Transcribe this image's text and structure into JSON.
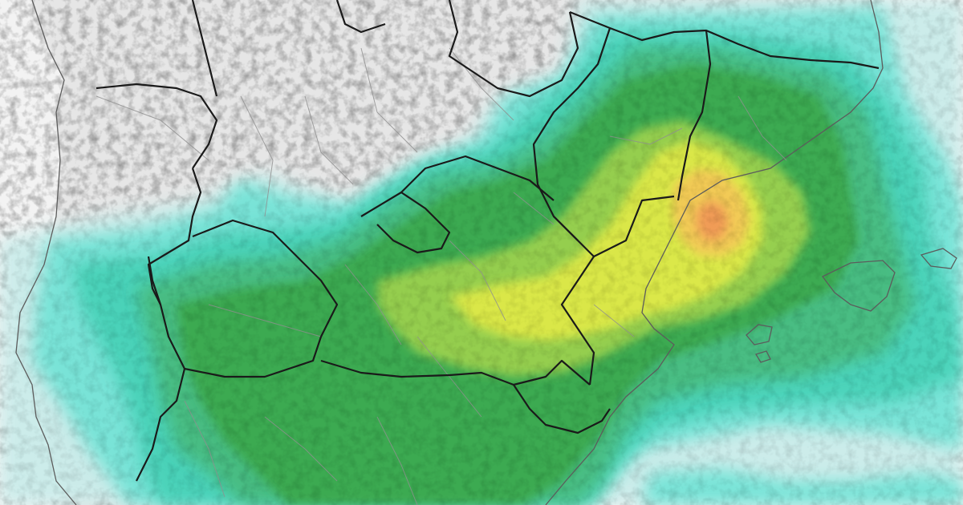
{
  "map": {
    "colors": {
      "sea": "#f3f3f3",
      "land": "#e6e6e6",
      "relief_shadow": "#bdbdbd",
      "border_major": "#1a1a1a",
      "border_minor": "#8f8f8f"
    },
    "precip_scale": [
      {
        "level": 1,
        "color": "#c9ecea"
      },
      {
        "level": 2,
        "color": "#6fe3d6"
      },
      {
        "level": 3,
        "color": "#3ed1b6"
      },
      {
        "level": 4,
        "color": "#3ab97a"
      },
      {
        "level": 5,
        "color": "#2fa544"
      },
      {
        "level": 6,
        "color": "#8fcd42"
      },
      {
        "level": 7,
        "color": "#d9e83a"
      },
      {
        "level": 8,
        "color": "#f2c74a"
      },
      {
        "level": 9,
        "color": "#f0944a"
      }
    ]
  }
}
